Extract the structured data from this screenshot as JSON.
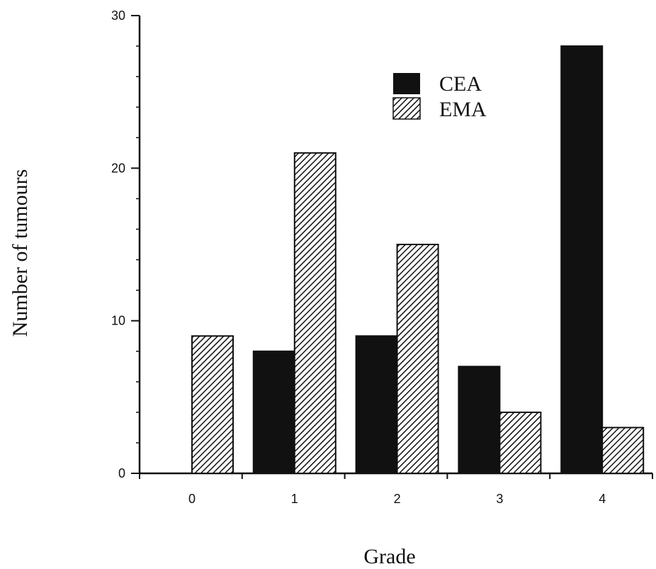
{
  "chart_data": {
    "type": "bar",
    "title": "",
    "xlabel": "Grade",
    "ylabel": "Number of tumours",
    "categories": [
      "0",
      "1",
      "2",
      "3",
      "4"
    ],
    "series": [
      {
        "name": "CEA",
        "values": [
          0,
          8,
          9,
          7,
          28
        ],
        "color": "#111111",
        "pattern": "solid"
      },
      {
        "name": "EMA",
        "values": [
          9,
          21,
          15,
          4,
          3
        ],
        "color": "#111111",
        "pattern": "diagonal-hatch"
      }
    ],
    "y_ticks": [
      "0",
      "10",
      "20",
      "30"
    ],
    "ylim": [
      0,
      30
    ],
    "grid": false,
    "legend_position": "top-right"
  }
}
